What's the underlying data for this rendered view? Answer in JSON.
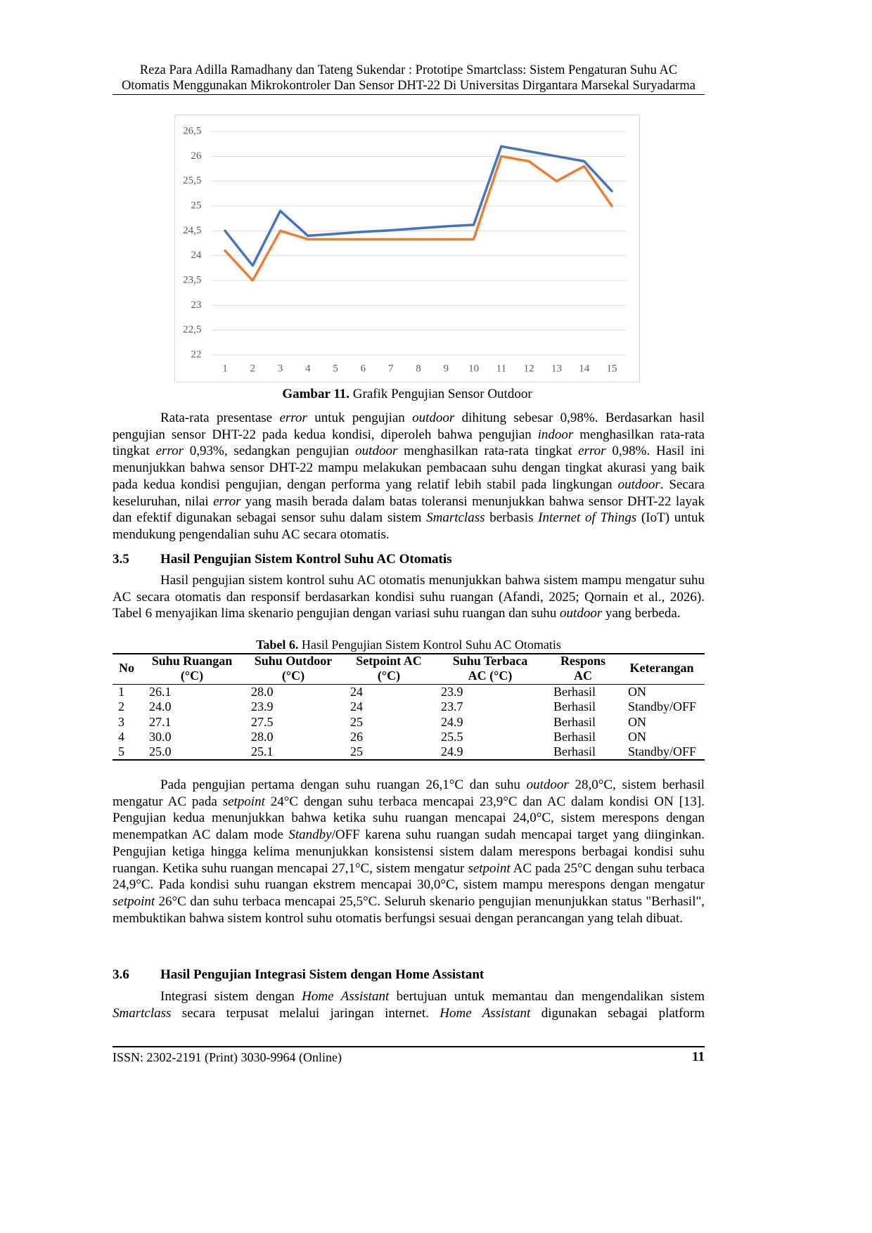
{
  "header": {
    "line_1": "Reza Para Adilla Ramadhany dan Tateng Sukendar : Prototipe Smartclass: Sistem Pengaturan Suhu AC",
    "line_2": "Otomatis Menggunakan Mikrokontroler Dan Sensor DHT-22 Di Universitas Dirgantara Marsekal Suryadarma"
  },
  "chart_data": {
    "type": "line",
    "x": [
      1,
      2,
      3,
      4,
      5,
      6,
      7,
      8,
      9,
      10,
      11,
      12,
      13,
      14,
      15
    ],
    "series": [
      {
        "color": "#4472c4",
        "values": [
          24.5,
          23.8,
          24.9,
          24.4,
          24.44,
          24.48,
          24.51,
          24.55,
          24.59,
          24.62,
          26.2,
          26.1,
          26.0,
          25.9,
          25.3
        ]
      },
      {
        "color": "#ed7d31",
        "values": [
          24.1,
          23.5,
          24.5,
          24.33,
          24.33,
          24.33,
          24.33,
          24.33,
          24.33,
          24.33,
          26.0,
          25.9,
          25.5,
          25.8,
          25.0
        ]
      }
    ],
    "xlim": [
      0.5,
      15.5
    ],
    "xticks": [
      1,
      2,
      3,
      4,
      5,
      6,
      7,
      8,
      9,
      10,
      11,
      12,
      13,
      14,
      15
    ],
    "ylim": [
      22,
      26.5
    ],
    "yticks": [
      22,
      {
        "value": 22.5,
        "label": "22,5"
      },
      23,
      {
        "value": 23.5,
        "label": "23,5"
      },
      24,
      {
        "value": 24.5,
        "label": "24,5"
      },
      25,
      {
        "value": 25.5,
        "label": "25,5"
      },
      26,
      {
        "value": 26.5,
        "label": "26,5"
      }
    ],
    "grid": true
  },
  "figure_caption": {
    "label": "Gambar 11.",
    "text": "Grafik Pengujian Sensor Outdoor"
  },
  "paragraph_1": [
    "Rata-rata presentase ",
    "error",
    " untuk pengujian ",
    "outdoor",
    " dihitung sebesar 0,98%. Berdasarkan hasil pengujian sensor DHT-22 pada kedua kondisi, diperoleh bahwa pengujian ",
    "indoor",
    " menghasilkan rata-rata tingkat ",
    "error",
    " 0,93%, sedangkan pengujian ",
    "outdoor",
    " menghasilkan rata-rata tingkat ",
    "error",
    " 0,98%. Hasil ini menunjukkan bahwa sensor DHT-22 mampu melakukan pembacaan suhu dengan tingkat akurasi yang baik pada kedua kondisi pengujian, dengan performa yang relatif lebih stabil pada lingkungan ",
    "outdoor",
    ". Secara keseluruhan, nilai ",
    "error",
    " yang masih berada dalam batas toleransi menunjukkan bahwa sensor DHT-22 layak dan efektif digunakan sebagai sensor suhu dalam sistem ",
    "Smartclass",
    " berbasis ",
    "Internet of Things",
    " (IoT) untuk mendukung pengendalian suhu AC secara otomatis."
  ],
  "section_3_5": {
    "number": "3.5",
    "title": "Hasil Pengujian Sistem Kontrol Suhu AC Otomatis"
  },
  "paragraph_2": [
    "Hasil pengujian sistem kontrol suhu AC otomatis menunjukkan bahwa sistem mampu mengatur suhu AC secara otomatis dan responsif berdasarkan kondisi suhu ruangan (Afandi, 2025; Qornain et al., 2026). Tabel 6 menyajikan lima skenario pengujian dengan variasi suhu ruangan dan suhu ",
    "outdoor",
    " yang berbeda."
  ],
  "table": {
    "caption": {
      "label": "Tabel 6.",
      "text": "Hasil Pengujian Sistem Kontrol Suhu AC Otomatis"
    },
    "columns": [
      [
        "No"
      ],
      [
        "Suhu Ruangan",
        "(°C)"
      ],
      [
        "Suhu Outdoor",
        "(°C)"
      ],
      [
        "Setpoint AC",
        "(°C)"
      ],
      [
        "Suhu Terbaca",
        "AC (°C)"
      ],
      [
        "Respons",
        "AC"
      ],
      [
        "Keterangan"
      ]
    ],
    "rows": [
      [
        "1",
        "26.1",
        "28.0",
        "24",
        "23.9",
        "Berhasil",
        "ON"
      ],
      [
        "2",
        "24.0",
        "23.9",
        "24",
        "23.7",
        "Berhasil",
        "Standby/OFF"
      ],
      [
        "3",
        "27.1",
        "27.5",
        "25",
        "24.9",
        "Berhasil",
        "ON"
      ],
      [
        "4",
        "30.0",
        "28.0",
        "26",
        "25.5",
        "Berhasil",
        "ON"
      ],
      [
        "5",
        "25.0",
        "25.1",
        "25",
        "24.9",
        "Berhasil",
        "Standby/OFF"
      ]
    ]
  },
  "paragraph_3": [
    "Pada pengujian pertama dengan suhu ruangan 26,1°C dan suhu ",
    "outdoor",
    " 28,0°C, sistem berhasil mengatur AC pada ",
    "setpoint",
    " 24°C dengan suhu terbaca mencapai 23,9°C dan AC dalam kondisi ON [13]. Pengujian kedua menunjukkan bahwa ketika suhu ruangan mencapai 24,0°C, sistem merespons dengan menempatkan AC dalam mode ",
    "Standby",
    "/OFF karena suhu ruangan sudah mencapai target yang diinginkan. Pengujian ketiga hingga kelima menunjukkan konsistensi sistem dalam merespons berbagai kondisi suhu ruangan. Ketika suhu ruangan mencapai 27,1°C, sistem mengatur ",
    "setpoint",
    " AC pada 25°C dengan suhu terbaca 24,9°C. Pada kondisi suhu ruangan ekstrem mencapai 30,0°C, sistem mampu merespons dengan mengatur ",
    "setpoint",
    " 26°C dan suhu terbaca mencapai 25,5°C. Seluruh skenario pengujian menunjukkan status \"Berhasil\", membuktikan bahwa sistem kontrol suhu otomatis berfungsi sesuai dengan perancangan yang telah dibuat."
  ],
  "section_3_6": {
    "number": "3.6",
    "title": "Hasil Pengujian Integrasi Sistem dengan Home Assistant"
  },
  "paragraph_4": [
    "Integrasi sistem dengan ",
    "Home Assistant",
    " bertujuan untuk memantau dan mengendalikan sistem ",
    "Smartclass",
    " secara terpusat melalui jaringan internet. ",
    "Home Assistant",
    " digunakan sebagai platform"
  ],
  "footer": {
    "issn": "ISSN: 2302-2191 (Print) 3030-9964 (Online)",
    "page": "11"
  }
}
